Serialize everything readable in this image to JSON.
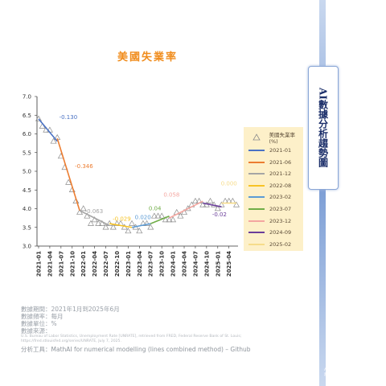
{
  "title": "美國失業率",
  "side_title": "AI數據分析趨勢圖",
  "legend": {
    "marker_label": "美國失業率(%)",
    "items": [
      {
        "label": "2021-01",
        "color": "#4a72c4"
      },
      {
        "label": "2021-06",
        "color": "#ec7d31"
      },
      {
        "label": "2021-12",
        "color": "#a5a5a5"
      },
      {
        "label": "2022-08",
        "color": "#f7c325"
      },
      {
        "label": "2023-02",
        "color": "#5b9bd5"
      },
      {
        "label": "2023-07",
        "color": "#70ad47"
      },
      {
        "label": "2023-12",
        "color": "#f4a6a0"
      },
      {
        "label": "2024-09",
        "color": "#6a3d9a"
      },
      {
        "label": "2025-02",
        "color": "#f6dc8a"
      }
    ]
  },
  "notes": {
    "period": "數據期間：2021年1月到2025年6月",
    "frequency": "數據頻率：每月",
    "unit": "數據單位：%",
    "source_label": "數據來源：",
    "source_line1": "U.S. Bureau of Labor Statistics, Unemployment Rate [UNRATE], retrieved from FRED, Federal Reserve Bank of St. Louis;",
    "source_line2": "https://fred.stlouisfed.org/series/UNRATE, July 7, 2025.",
    "tool": "分析工具：MathAI for numerical modelling (lines combined method) – Github"
  },
  "watermark": [
    "AI數據分析",
    "趨勢圖"
  ],
  "chart_data": {
    "type": "scatter",
    "title": "美國失業率",
    "xlabel": "",
    "ylabel": "",
    "ylim": [
      3.0,
      7.0
    ],
    "y_ticks": [
      "3.0",
      "3.5",
      "4.0",
      "4.5",
      "5.0",
      "5.5",
      "6.0",
      "6.5",
      "7.0"
    ],
    "x_ticks": [
      "2021-01",
      "2021-04",
      "2021-07",
      "2021-10",
      "2022-01",
      "2022-04",
      "2022-07",
      "2022-10",
      "2023-01",
      "2023-04",
      "2023-07",
      "2023-10",
      "2024-01",
      "2024-04",
      "2024-07",
      "2024-10",
      "2025-01",
      "2025-04"
    ],
    "grid": false,
    "legend_position": "right",
    "x": [
      "2021-01",
      "2021-02",
      "2021-03",
      "2021-04",
      "2021-05",
      "2021-06",
      "2021-07",
      "2021-08",
      "2021-09",
      "2021-10",
      "2021-11",
      "2021-12",
      "2022-01",
      "2022-02",
      "2022-03",
      "2022-04",
      "2022-05",
      "2022-06",
      "2022-07",
      "2022-08",
      "2022-09",
      "2022-10",
      "2022-11",
      "2022-12",
      "2023-01",
      "2023-02",
      "2023-03",
      "2023-04",
      "2023-05",
      "2023-06",
      "2023-07",
      "2023-08",
      "2023-09",
      "2023-10",
      "2023-11",
      "2023-12",
      "2024-01",
      "2024-02",
      "2024-03",
      "2024-04",
      "2024-05",
      "2024-06",
      "2024-07",
      "2024-08",
      "2024-09",
      "2024-10",
      "2024-11",
      "2024-12",
      "2025-01",
      "2025-02",
      "2025-03",
      "2025-04",
      "2025-05",
      "2025-06"
    ],
    "series": [
      {
        "name": "美國失業率(%)",
        "marker": "triangle",
        "values": [
          6.4,
          6.2,
          6.1,
          6.1,
          5.8,
          5.9,
          5.4,
          5.1,
          4.7,
          4.5,
          4.2,
          3.9,
          4.0,
          3.8,
          3.6,
          3.7,
          3.6,
          3.6,
          3.5,
          3.6,
          3.5,
          3.6,
          3.6,
          3.5,
          3.4,
          3.6,
          3.5,
          3.4,
          3.6,
          3.6,
          3.5,
          3.8,
          3.8,
          3.8,
          3.7,
          3.7,
          3.7,
          3.9,
          3.8,
          3.9,
          4.0,
          4.1,
          4.2,
          4.2,
          4.1,
          4.1,
          4.2,
          4.1,
          4.0,
          4.1,
          4.2,
          4.2,
          4.2,
          4.1
        ]
      }
    ],
    "segments": [
      {
        "start": "2021-01",
        "end": "2021-06",
        "y_start": 6.4,
        "y_end": 5.8,
        "slope_label": "-0.130",
        "color": "#4a72c4"
      },
      {
        "start": "2021-06",
        "end": "2021-12",
        "y_start": 5.88,
        "y_end": 3.95,
        "slope_label": "-0.346",
        "color": "#ec7d31"
      },
      {
        "start": "2021-12",
        "end": "2022-08",
        "y_start": 3.95,
        "y_end": 3.55,
        "slope_label": "-0.063",
        "color": "#a5a5a5"
      },
      {
        "start": "2022-08",
        "end": "2023-02",
        "y_start": 3.6,
        "y_end": 3.5,
        "slope_label": "-0.029",
        "color": "#f7c325"
      },
      {
        "start": "2023-02",
        "end": "2023-07",
        "y_start": 3.5,
        "y_end": 3.6,
        "slope_label": "0.020",
        "color": "#5b9bd5"
      },
      {
        "start": "2023-07",
        "end": "2023-12",
        "y_start": 3.6,
        "y_end": 3.8,
        "slope_label": "0.04",
        "color": "#70ad47"
      },
      {
        "start": "2023-12",
        "end": "2024-09",
        "y_start": 3.75,
        "y_end": 4.2,
        "slope_label": "0.058",
        "color": "#f4a6a0"
      },
      {
        "start": "2024-09",
        "end": "2025-02",
        "y_start": 4.15,
        "y_end": 4.05,
        "slope_label": "-0.02",
        "color": "#6a3d9a"
      },
      {
        "start": "2025-02",
        "end": "2025-06",
        "y_start": 4.15,
        "y_end": 4.15,
        "slope_label": "0.000",
        "color": "#f6dc8a"
      }
    ]
  }
}
